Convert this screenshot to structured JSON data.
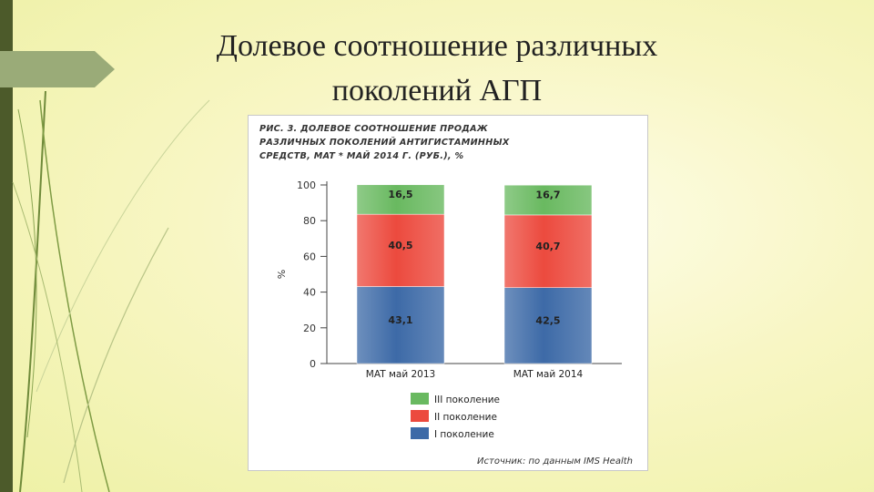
{
  "slide": {
    "title_line1": "Долевое соотношение различных",
    "title_line2": "поколений АГП",
    "colors": {
      "accent_bar": "#4c5a2a",
      "tab": "#9aab78",
      "background": "#f8f6c4"
    }
  },
  "figure": {
    "caption_line1": "Рис. 3. Долевое соотношение продаж",
    "caption_line2": "различных поколений антигистаминных",
    "caption_line3": "средств, MAT * май 2014 г. (руб.), %",
    "source": "Источник: по данным IMS Health"
  },
  "chart_data": {
    "type": "bar",
    "stacked": true,
    "categories": [
      "MAT май 2013",
      "MAT май 2014"
    ],
    "series": [
      {
        "name": "I поколение",
        "values": [
          43.1,
          42.5
        ],
        "labels": [
          "43,1",
          "42,5"
        ],
        "color": "#3d6aa7"
      },
      {
        "name": "II поколение",
        "values": [
          40.5,
          40.7
        ],
        "labels": [
          "40,5",
          "40,7"
        ],
        "color": "#ec4a3e"
      },
      {
        "name": "III поколение",
        "values": [
          16.5,
          16.7
        ],
        "labels": [
          "16,5",
          "16,7"
        ],
        "color": "#69b960"
      }
    ],
    "legend_order": [
      2,
      1,
      0
    ],
    "ylabel": "%",
    "ylim": [
      0,
      100
    ],
    "yticks": [
      0,
      20,
      40,
      60,
      80,
      100
    ],
    "grid": false,
    "legend_position": "bottom"
  }
}
